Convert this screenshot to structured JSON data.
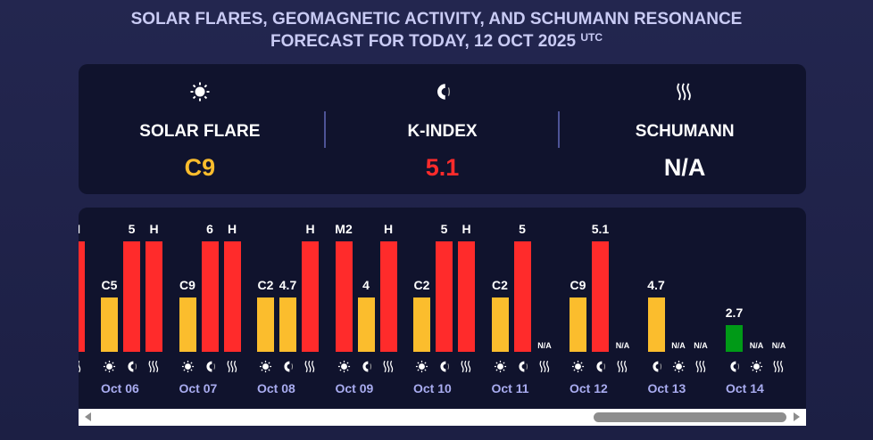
{
  "title": {
    "line1": "SOLAR FLARES, GEOMAGNETIC ACTIVITY, AND SCHUMANN RESONANCE",
    "line2": "FORECAST FOR TODAY, 12 OCT 2025",
    "tz": "UTC"
  },
  "summary": [
    {
      "icon": "sun-icon",
      "label": "SOLAR FLARE",
      "value": "C9",
      "color": "#fbbd2d"
    },
    {
      "icon": "magnet-icon",
      "label": "K-INDEX",
      "value": "5.1",
      "color": "#ff2b2b"
    },
    {
      "icon": "waves-icon",
      "label": "SCHUMANN",
      "value": "N/A",
      "color": "#ffffff"
    }
  ],
  "colors": {
    "yellow": "#fbbd2d",
    "red": "#ff2b2b",
    "green": "#009a17"
  },
  "days": [
    {
      "date": "",
      "bars": [
        null,
        null,
        {
          "kind": "schumann",
          "label": "H",
          "pct": 100,
          "color": "red"
        }
      ]
    },
    {
      "date": "Oct 06",
      "bars": [
        {
          "kind": "sun",
          "label": "C5",
          "pct": 49,
          "color": "yellow"
        },
        {
          "kind": "magnet",
          "label": "5",
          "pct": 100,
          "color": "red"
        },
        {
          "kind": "schumann",
          "label": "H",
          "pct": 100,
          "color": "red"
        }
      ]
    },
    {
      "date": "Oct 07",
      "bars": [
        {
          "kind": "sun",
          "label": "C9",
          "pct": 49,
          "color": "yellow"
        },
        {
          "kind": "magnet",
          "label": "6",
          "pct": 100,
          "color": "red"
        },
        {
          "kind": "schumann",
          "label": "H",
          "pct": 100,
          "color": "red"
        }
      ]
    },
    {
      "date": "Oct 08",
      "bars": [
        {
          "kind": "sun",
          "label": "C2",
          "pct": 49,
          "color": "yellow"
        },
        {
          "kind": "magnet",
          "label": "4.7",
          "pct": 49,
          "color": "yellow"
        },
        {
          "kind": "schumann",
          "label": "H",
          "pct": 100,
          "color": "red"
        }
      ]
    },
    {
      "date": "Oct 09",
      "bars": [
        {
          "kind": "sun",
          "label": "M2",
          "pct": 100,
          "color": "red"
        },
        {
          "kind": "magnet",
          "label": "4",
          "pct": 49,
          "color": "yellow"
        },
        {
          "kind": "schumann",
          "label": "H",
          "pct": 100,
          "color": "red"
        }
      ]
    },
    {
      "date": "Oct 10",
      "bars": [
        {
          "kind": "sun",
          "label": "C2",
          "pct": 49,
          "color": "yellow"
        },
        {
          "kind": "magnet",
          "label": "5",
          "pct": 100,
          "color": "red"
        },
        {
          "kind": "schumann",
          "label": "H",
          "pct": 100,
          "color": "red"
        }
      ]
    },
    {
      "date": "Oct 11",
      "bars": [
        {
          "kind": "sun",
          "label": "C2",
          "pct": 49,
          "color": "yellow"
        },
        {
          "kind": "magnet",
          "label": "5",
          "pct": 100,
          "color": "red"
        },
        {
          "kind": "schumann",
          "label": "N/A",
          "pct": 0,
          "color": "red"
        }
      ]
    },
    {
      "date": "Oct 12",
      "bars": [
        {
          "kind": "sun",
          "label": "C9",
          "pct": 49,
          "color": "yellow"
        },
        {
          "kind": "magnet",
          "label": "5.1",
          "pct": 100,
          "color": "red"
        },
        {
          "kind": "schumann",
          "label": "N/A",
          "pct": 0,
          "color": "red"
        }
      ]
    },
    {
      "date": "Oct 13",
      "bars": [
        {
          "kind": "magnet",
          "label": "4.7",
          "pct": 49,
          "color": "yellow"
        },
        {
          "kind": "sun",
          "label": "N/A",
          "pct": 0,
          "color": "red"
        },
        {
          "kind": "schumann",
          "label": "N/A",
          "pct": 0,
          "color": "red"
        }
      ]
    },
    {
      "date": "Oct 14",
      "bars": [
        {
          "kind": "magnet",
          "label": "2.7",
          "pct": 24,
          "color": "green"
        },
        {
          "kind": "sun",
          "label": "N/A",
          "pct": 0,
          "color": "red"
        },
        {
          "kind": "schumann",
          "label": "N/A",
          "pct": 0,
          "color": "red"
        }
      ]
    }
  ]
}
